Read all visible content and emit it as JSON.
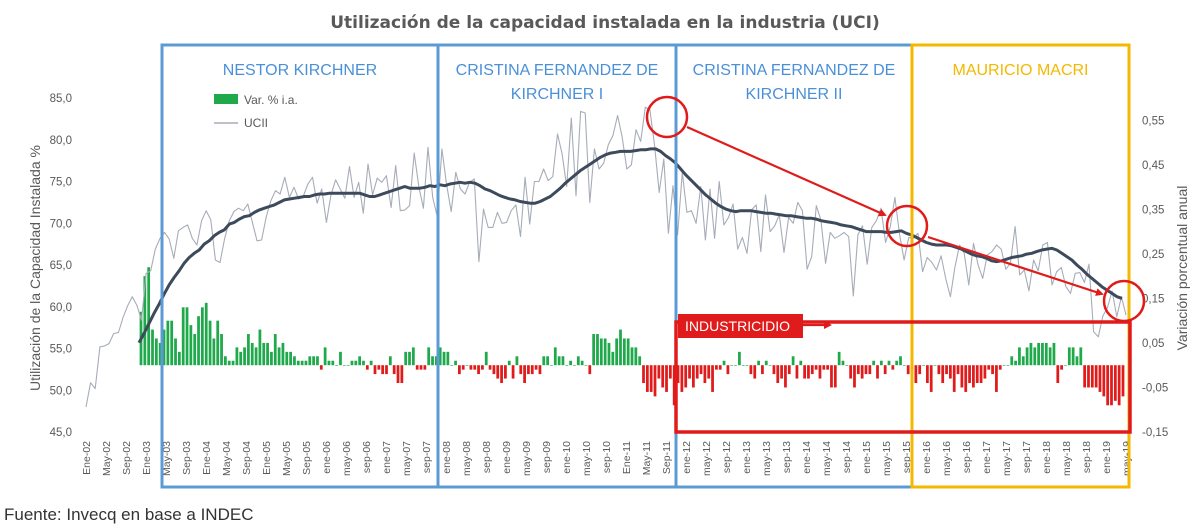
{
  "chart_data": {
    "type": "bar+line",
    "title": "Utilización de la capacidad instalada en la industria (UCI)",
    "ylabel_left": "Utilización de la Capacidad Instalada %",
    "ylabel_right": "Variación porcentual anual",
    "left_axis": {
      "ylim": [
        45,
        85
      ],
      "ticks": [
        "85,0",
        "80,0",
        "75,0",
        "70,0",
        "65,0",
        "60,0",
        "55,0",
        "50,0",
        "45,0"
      ]
    },
    "right_axis": {
      "ylim": [
        -0.15,
        0.6
      ],
      "ticks": [
        "0,55",
        "0,45",
        "0,35",
        "0,25",
        "0,15",
        "0,05",
        "-0,05",
        "-0,15"
      ]
    },
    "x_tick_labels": [
      "Ene-02",
      "May-02",
      "Sep-02",
      "Ene-03",
      "May-03",
      "Sep-03",
      "Ene-04",
      "May-04",
      "Sep-04",
      "Ene-05",
      "May-05",
      "Sep-05",
      "ene-06",
      "may-06",
      "sep-06",
      "ene-07",
      "may-07",
      "sep-07",
      "ene-08",
      "may-08",
      "sep-08",
      "ene-09",
      "may-09",
      "sep-09",
      "ene-10",
      "may-10",
      "sep-10",
      "Ene-11",
      "May-11",
      "Sep-11",
      "ene-12",
      "may-12",
      "sep-12",
      "ene-13",
      "may-13",
      "sep-13",
      "ene-14",
      "may-14",
      "sep-14",
      "ene-15",
      "may-15",
      "sep-15",
      "ene-16",
      "may-16",
      "sep-16",
      "ene-17",
      "may-17",
      "sep-17",
      "ene-18",
      "may-18",
      "sep-18",
      "ene-19",
      "may-19"
    ],
    "legend": [
      {
        "name": "Var. % i.a.",
        "color": "#1fa94b"
      },
      {
        "name": "UCII",
        "color": "#a6acb8"
      }
    ],
    "series": [
      {
        "name": "UCII",
        "axis": "left",
        "color": "#a6acb8",
        "values": [
          48.0,
          50.9,
          50.2,
          55.2,
          55.3,
          55.6,
          56.8,
          56.9,
          58.7,
          60.1,
          61.2,
          60.2,
          58.4,
          64.0,
          64.3,
          66.9,
          68.2,
          68.9,
          68.1,
          65.8,
          69.1,
          69.5,
          69.8,
          68.2,
          67.4,
          70.3,
          71.5,
          70.4,
          65.6,
          65.3,
          68.2,
          70.3,
          71.4,
          71.8,
          71.5,
          72.3,
          70.1,
          67.9,
          68.0,
          70.8,
          72.7,
          73.9,
          73.5,
          75.5,
          73.1,
          74.3,
          72.9,
          73.2,
          74.7,
          75.5,
          72.4,
          74.1,
          70.1,
          73.4,
          75.2,
          74.1,
          73.0,
          76.8,
          73.1,
          74.9,
          71.2,
          77.1,
          73.4,
          75.4,
          74.9,
          75.7,
          71.9,
          76.9,
          71.5,
          71.6,
          72.1,
          78.4,
          74.4,
          71.8,
          79.1,
          73.1,
          70.8,
          78.9,
          74.7,
          71.4,
          76.1,
          74.1,
          73.5,
          74.9,
          75.3,
          65.4,
          71.7,
          69.5,
          69.5,
          71.3,
          70.0,
          70.1,
          71.5,
          72.2,
          68.4,
          75.5,
          69.9,
          75.0,
          75.0,
          76.5,
          75.1,
          75.6,
          80.7,
          78.3,
          74.4,
          82.6,
          73.3,
          83.4,
          83.2,
          72.5,
          78.9,
          76.5,
          77.2,
          79.4,
          80.5,
          82.9,
          80.3,
          76.5,
          77.0,
          81.2,
          79.8,
          83.9,
          83.6,
          79.4,
          73.7,
          77.7,
          68.8,
          74.5,
          68.6,
          76.1,
          71.3,
          71.5,
          70.0,
          74.4,
          68.0,
          74.1,
          68.2,
          75.0,
          69.8,
          70.7,
          72.3,
          66.9,
          68.3,
          66.4,
          71.6,
          72.2,
          66.6,
          73.4,
          69.0,
          69.7,
          71.0,
          66.5,
          70.7,
          70.0,
          72.5,
          71.5,
          64.5,
          66.0,
          72.1,
          70.4,
          65.2,
          68.9,
          68.2,
          68.5,
          68.9,
          68.4,
          61.3,
          68.6,
          69.7,
          65.1,
          69.5,
          70.3,
          71.8,
          67.7,
          69.6,
          73.1,
          68.7,
          65.6,
          68.3,
          68.2,
          68.8,
          64.2,
          65.9,
          65.3,
          64.4,
          66.1,
          63.4,
          61.2,
          64.8,
          67.4,
          66.4,
          62.6,
          67.6,
          65.0,
          63.4,
          66.2,
          66.6,
          67.4,
          66.9,
          64.5,
          65.2,
          69.6,
          63.8,
          64.4,
          61.9,
          65.6,
          64.3,
          67.4,
          67.7,
          62.6,
          64.2,
          64.7,
          62.4,
          61.6,
          64.0,
          64.1,
          62.9,
          65.1,
          57.0,
          56.4,
          58.9,
          59.9,
          61.9,
          58.8,
          61.2,
          59.0
        ]
      },
      {
        "name": "UCII (tendencia)",
        "axis": "left",
        "color": "#3d4a5c",
        "values": [
          55.7,
          56.8,
          58.0,
          59.2,
          60.3,
          61.5,
          62.6,
          63.5,
          64.3,
          65.2,
          65.9,
          66.4,
          66.8,
          67.5,
          67.9,
          68.5,
          68.9,
          69.2,
          69.9,
          70.1,
          70.5,
          70.8,
          70.9,
          71.3,
          71.6,
          71.8,
          72.0,
          72.2,
          72.5,
          72.8,
          72.9,
          73.0,
          73.1,
          73.2,
          73.2,
          73.4,
          73.5,
          73.5,
          73.6,
          73.6,
          73.6,
          73.6,
          73.6,
          73.6,
          73.6,
          73.4,
          73.2,
          73.2,
          73.4,
          73.6,
          73.8,
          74.0,
          74.2,
          74.4,
          74.2,
          74.2,
          74.2,
          74.3,
          74.5,
          74.4,
          74.6,
          74.5,
          74.7,
          74.8,
          74.9,
          74.8,
          74.9,
          74.8,
          74.5,
          74.1,
          73.9,
          73.6,
          73.3,
          73.1,
          72.9,
          72.8,
          72.6,
          72.5,
          72.4,
          72.4,
          72.6,
          72.9,
          73.2,
          73.7,
          74.2,
          74.8,
          75.3,
          75.8,
          76.3,
          76.7,
          77.1,
          77.5,
          77.9,
          78.2,
          78.4,
          78.5,
          78.6,
          78.6,
          78.6,
          78.7,
          78.8,
          78.8,
          78.9,
          78.9,
          78.6,
          78.1,
          77.7,
          77.2,
          76.5,
          75.8,
          75.2,
          74.6,
          74.0,
          73.4,
          72.9,
          72.4,
          72.0,
          71.7,
          71.5,
          71.4,
          71.5,
          71.5,
          71.5,
          71.4,
          71.3,
          71.2,
          71.2,
          71.1,
          71.0,
          70.9,
          70.9,
          70.8,
          70.7,
          70.6,
          70.6,
          70.5,
          70.3,
          70.2,
          70.1,
          70.0,
          69.8,
          69.7,
          69.6,
          69.4,
          69.2,
          69.0,
          69.0,
          69.0,
          69.0,
          68.9,
          68.9,
          69.0,
          69.1,
          68.8,
          68.6,
          68.3,
          68.0,
          67.7,
          67.5,
          67.4,
          67.4,
          67.4,
          67.3,
          67.1,
          66.9,
          66.6,
          66.3,
          66.1,
          66.0,
          65.8,
          65.5,
          65.4,
          65.5,
          65.7,
          65.9,
          66.0,
          66.1,
          66.3,
          66.4,
          66.6,
          66.8,
          66.9,
          67.0,
          66.8,
          66.4,
          66.0,
          65.6,
          65.0,
          64.5,
          63.9,
          63.4,
          62.9,
          62.4,
          62.0,
          61.6,
          61.2,
          61.0
        ]
      },
      {
        "name": "Var. % i.a.",
        "axis": "right",
        "positive_color": "#1fa94b",
        "negative_color": "#e01b1b",
        "values": [
          0.12,
          0.2,
          0.22,
          0.08,
          0.06,
          0.05,
          0.08,
          0.1,
          0.1,
          0.06,
          0.03,
          0.13,
          0.13,
          0.09,
          0.07,
          0.11,
          0.13,
          0.14,
          0.1,
          0.06,
          0.1,
          0.07,
          0.02,
          0.01,
          0.01,
          0.04,
          0.03,
          0.04,
          0.07,
          0.05,
          0.04,
          0.08,
          0.05,
          0.05,
          0.03,
          0.07,
          0.04,
          0.05,
          0.03,
          0.03,
          0.02,
          0.01,
          0.01,
          0.01,
          0.02,
          0.02,
          0.02,
          -0.01,
          0.04,
          0.01,
          0.01,
          0.0,
          0.03,
          0.0,
          0.0,
          0.01,
          0.01,
          0.02,
          0.01,
          -0.01,
          0.01,
          -0.02,
          -0.01,
          -0.02,
          -0.02,
          0.02,
          -0.02,
          -0.04,
          -0.04,
          0.03,
          0.03,
          0.04,
          -0.01,
          -0.01,
          -0.01,
          0.04,
          0.02,
          0.02,
          0.04,
          0.03,
          0.03,
          0.0,
          0.01,
          -0.02,
          -0.01,
          0.0,
          -0.01,
          -0.01,
          -0.02,
          -0.01,
          0.03,
          -0.01,
          -0.02,
          -0.03,
          -0.04,
          -0.03,
          0.01,
          -0.03,
          0.02,
          -0.02,
          -0.04,
          -0.02,
          -0.02,
          -0.01,
          -0.02,
          0.02,
          0.02,
          0.0,
          0.04,
          0.02,
          0.02,
          0.0,
          0.01,
          0.0,
          0.02,
          0.01,
          0.0,
          -0.02,
          0.07,
          0.07,
          0.06,
          0.06,
          0.05,
          0.03,
          0.06,
          0.08,
          0.06,
          0.06,
          0.04,
          0.04,
          0.02,
          -0.04,
          -0.06,
          -0.06,
          -0.07,
          -0.03,
          -0.05,
          -0.06,
          -0.03,
          -0.09,
          -0.04,
          -0.06,
          -0.05,
          -0.03,
          -0.05,
          -0.03,
          -0.02,
          -0.04,
          -0.03,
          -0.06,
          -0.01,
          -0.01,
          0.01,
          -0.02,
          0.0,
          0.0,
          0.03,
          0.0,
          0.0,
          -0.02,
          -0.03,
          0.01,
          -0.02,
          0.01,
          0.0,
          -0.02,
          -0.04,
          -0.03,
          -0.05,
          -0.02,
          0.02,
          -0.03,
          0.01,
          -0.03,
          -0.03,
          -0.02,
          -0.01,
          -0.03,
          -0.01,
          -0.01,
          -0.05,
          -0.05,
          0.03,
          0.01,
          0.0,
          -0.03,
          -0.05,
          -0.02,
          -0.03,
          -0.02,
          -0.02,
          0.01,
          -0.03,
          0.01,
          -0.02,
          0.01,
          -0.01,
          0.01,
          0.02,
          0.0,
          -0.02,
          -0.01,
          -0.04,
          -0.02,
          0.0,
          -0.04,
          -0.06,
          0.0,
          -0.02,
          -0.04,
          -0.02,
          -0.03,
          -0.06,
          -0.02,
          -0.05,
          -0.06,
          -0.04,
          -0.05,
          -0.04,
          -0.04,
          -0.03,
          -0.01,
          -0.02,
          -0.06,
          -0.01,
          0.0,
          0.0,
          0.02,
          0.01,
          0.04,
          0.02,
          0.04,
          0.05,
          0.04,
          0.05,
          0.05,
          0.05,
          0.04,
          0.05,
          -0.04,
          -0.01,
          0.0,
          0.04,
          0.04,
          0.02,
          0.04,
          -0.05,
          -0.05,
          -0.05,
          -0.05,
          -0.06,
          -0.07,
          -0.09,
          -0.09,
          -0.08,
          -0.09,
          -0.07
        ]
      }
    ],
    "periods": [
      {
        "label": [
          "NESTOR KIRCHNER"
        ],
        "color": "#5b9bd5",
        "text_color": "#4a90d9"
      },
      {
        "label": [
          "CRISTINA FERNANDEZ DE",
          "KIRCHNER I"
        ],
        "color": "#5b9bd5",
        "text_color": "#4a90d9"
      },
      {
        "label": [
          "CRISTINA FERNANDEZ DE",
          "KIRCHNER II"
        ],
        "color": "#5b9bd5",
        "text_color": "#4a90d9"
      },
      {
        "label": [
          "MAURICIO MACRI"
        ],
        "color": "#f5b800",
        "text_color": "#f5b800"
      }
    ],
    "annotation": {
      "label": "INDUSTRICIDIO",
      "color": "#e01b1b"
    },
    "grid": false,
    "legend_position": "top-left"
  },
  "source": "Fuente: Invecq en base a INDEC"
}
